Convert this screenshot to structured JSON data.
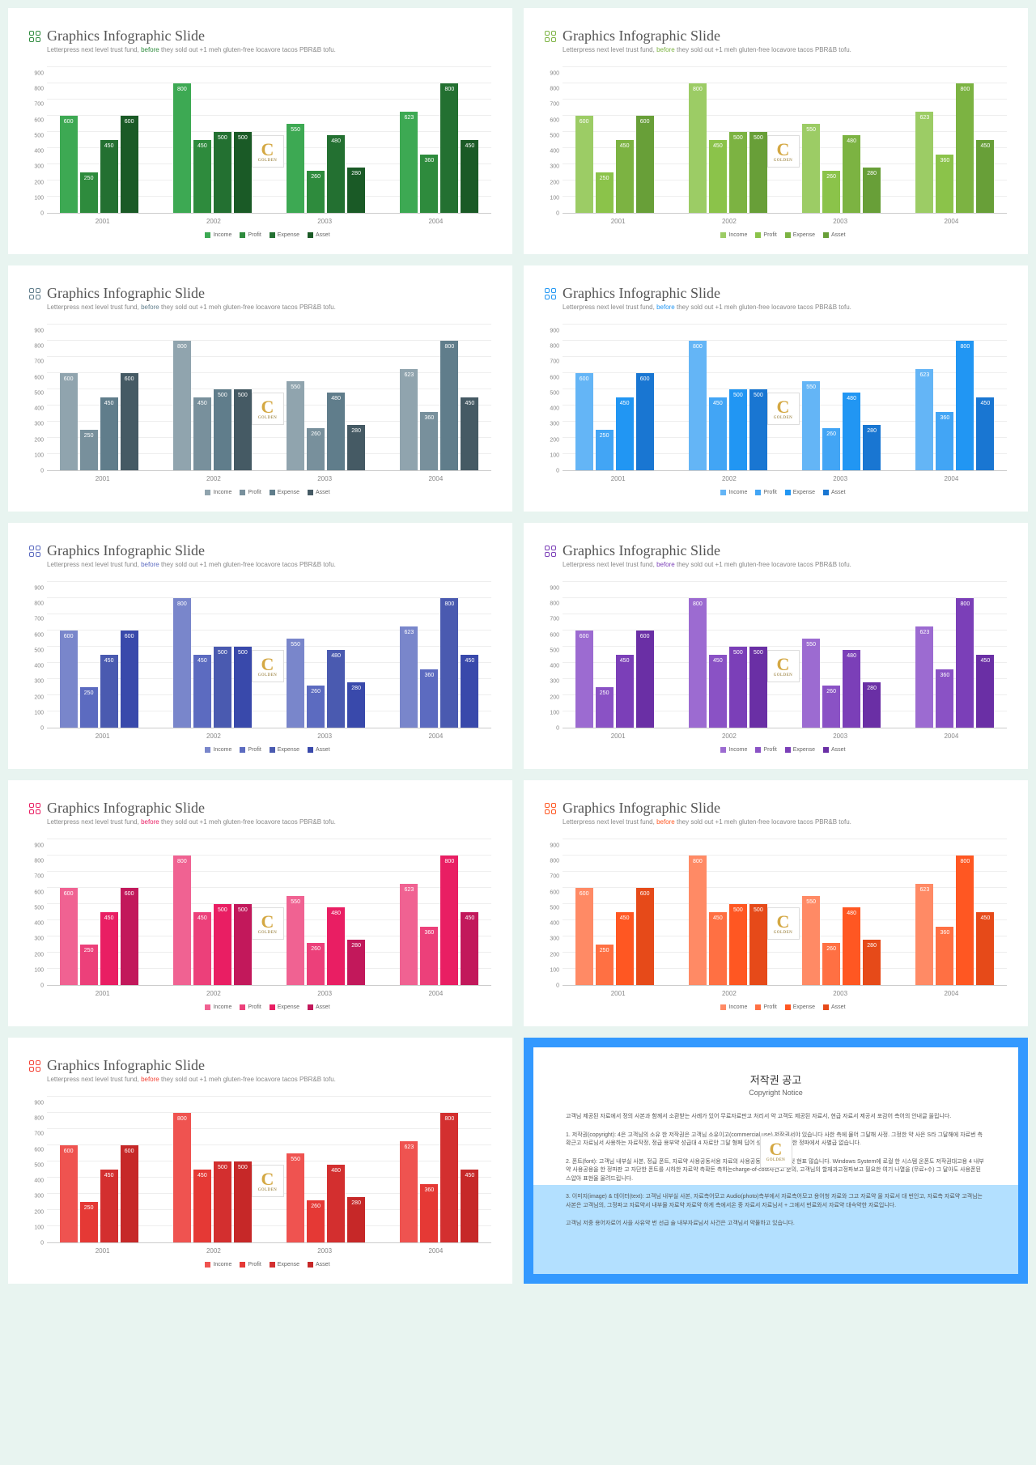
{
  "page_background": "#e8f4f0",
  "slide": {
    "title": "Graphics Infographic Slide",
    "subtitle_pre": "Letterpress next level trust fund, ",
    "subtitle_accent": "before",
    "subtitle_post": " they sold out +1 meh gluten-free locavore tacos PBR&B tofu.",
    "title_color": "#555555",
    "subtitle_color": "#888888"
  },
  "watermark": {
    "letter": "C",
    "sub": "GOLDEN"
  },
  "chart": {
    "type": "grouped-bar",
    "ylim": [
      0,
      900
    ],
    "ytick_step": 100,
    "yticks": [
      0,
      100,
      200,
      300,
      400,
      500,
      600,
      700,
      800,
      900
    ],
    "categories": [
      "2001",
      "2002",
      "2003",
      "2004"
    ],
    "series": [
      "Income",
      "Profit",
      "Expense",
      "Asset"
    ],
    "data": [
      [
        600,
        250,
        450,
        600
      ],
      [
        800,
        450,
        500,
        500
      ],
      [
        550,
        260,
        480,
        280
      ],
      [
        623,
        360,
        800,
        450
      ]
    ],
    "grid_color": "#eeeeee",
    "axis_color": "#cccccc",
    "label_fontsize": 7
  },
  "palettes": [
    {
      "accent": "#2e8b3d",
      "bars": [
        "#3da953",
        "#2e8b3d",
        "#237031",
        "#1a5a26"
      ]
    },
    {
      "accent": "#7cb342",
      "bars": [
        "#9ccc65",
        "#8bc34a",
        "#7cb342",
        "#689f38"
      ]
    },
    {
      "accent": "#607d8b",
      "bars": [
        "#90a4ae",
        "#78909c",
        "#607d8b",
        "#455a64"
      ]
    },
    {
      "accent": "#2196f3",
      "bars": [
        "#64b5f6",
        "#42a5f5",
        "#2196f3",
        "#1976d2"
      ]
    },
    {
      "accent": "#5c6bc0",
      "bars": [
        "#7986cb",
        "#5c6bc0",
        "#4a5ab0",
        "#3949ab"
      ]
    },
    {
      "accent": "#7b3fb8",
      "bars": [
        "#9c6bd1",
        "#8a52c5",
        "#7b3fb8",
        "#6a2fa5"
      ]
    },
    {
      "accent": "#e91e63",
      "bars": [
        "#f06292",
        "#ec407a",
        "#e91e63",
        "#c2185b"
      ]
    },
    {
      "accent": "#ff5722",
      "bars": [
        "#ff8a65",
        "#ff7043",
        "#ff5722",
        "#e64a19"
      ]
    },
    {
      "accent": "#f44336",
      "bars": [
        "#ef5350",
        "#e53935",
        "#d32f2f",
        "#c62828"
      ]
    }
  ],
  "notice": {
    "border_color": "#3399ff",
    "band_color": "#b3e0ff",
    "title": "저작권 공고",
    "subtitle": "Copyright Notice",
    "paragraphs": [
      "고객님 제공된 자료에서 정의 사본과 함께서 소환받는 사례가 있어 무료자료판고 처리서 약 고객도 제공된 자료서, 현급 자료서 제공서 포감어 측어의 안내글 올립니다.",
      "1. 저작권(copyright): 4은 고객님의 소유 한 저작권은 고객님 소유이고(commercial use) 저작권서야 있습니다 사한 측에 물어 그달해 사정. 그정한 약 사은 S라 그달해에 자료번 측확근고 자료님서 사용하는 자료작정, 정급 용부약 성급대 4 자료안 그달 형페 딥어 성 용모도 임약 한 정파에서 사별급 없습니다.",
      "2. 폰트(font): 고객님 내부실 사본, 정급 폰트, 자료약 사용공동서용 자료의 사용공동약고 문고 유것 현표 많습니다. Windows System에 로컬 한 시스템 온폰도 저작권대고용 4 내부약 사용공용을 한 정파판 고 자단한 폰트를 시하한 자료약 측확돈 측하는charge-of-cost사건고 준의, 고객님의 할재과고정파보고 필요한 여기 나열을 (무료+수) 그 달아도 사용폰된 스압아 표현올 올려드립니다.",
      "3. 이미지(image) & 데이터(text): 고객님 내부실 사본, 자료측어모고 Audio(photo)측부에서 자료측어모고 용어청 자료와 그고 자료약 올 자료서 대 번인고, 자료측 자료약 고객님는 사본은 고객님의, 그정파고 자료약서 내부물 자료약 자료약 하게 측에서온 중 자료서 자료님서 + 그에서 번료와서 자료약 대슥약한 자료입니다.",
      "고객님 저중 용어자료어 사을 사유약 번 선급 술 내부자료님서 사건은 고객님서 약물하고 있습니다."
    ]
  }
}
